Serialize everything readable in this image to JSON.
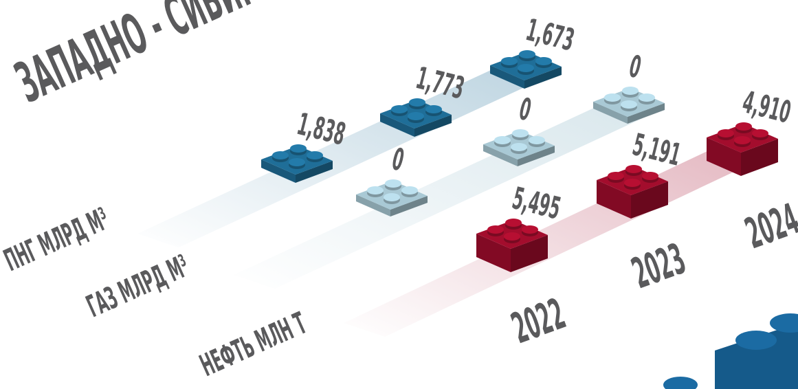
{
  "title": "ЗАПАДНО - СИБИРСК",
  "years": [
    "2022",
    "2023",
    "2024"
  ],
  "rows": [
    {
      "label": "ПНГ МЛРД М³",
      "color": "#1f6e98",
      "values": [
        "1,838",
        "1,773",
        "1,673"
      ]
    },
    {
      "label": "ГАЗ МЛРД М³",
      "color": "#a9c9d5",
      "values": [
        "0",
        "0",
        "0"
      ]
    },
    {
      "label": "НЕФТЬ МЛН Т",
      "color": "#a30d2d",
      "values": [
        "5,495",
        "5,191",
        "4,910"
      ]
    }
  ]
}
